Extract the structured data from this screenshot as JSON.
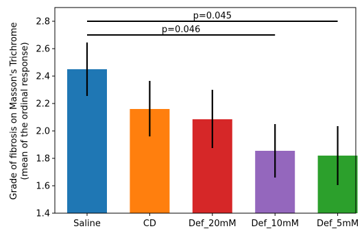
{
  "chart_data": {
    "type": "bar",
    "title": "",
    "xlabel": "",
    "ylabel": [
      "Grade of fibrosis on Masson's Trichrome",
      "(mean of the ordinal response)"
    ],
    "categories": [
      "Saline",
      "CD",
      "Def_20mM",
      "Def_10mM",
      "Def_5mM"
    ],
    "values": [
      2.45,
      2.16,
      2.085,
      1.855,
      1.82
    ],
    "err_low": [
      2.255,
      1.96,
      1.875,
      1.66,
      1.605
    ],
    "err_high": [
      2.645,
      2.365,
      2.3,
      2.05,
      2.035
    ],
    "colors": [
      "#1f77b4",
      "#ff7f0e",
      "#d62728",
      "#9467bd",
      "#2ca02c"
    ],
    "ylim": [
      1.4,
      2.9
    ],
    "yticks": [
      "1.4",
      "1.6",
      "1.8",
      "2.0",
      "2.2",
      "2.4",
      "2.6",
      "2.8"
    ],
    "grid": false,
    "annotations": [
      {
        "from": "Saline",
        "to": "Def_5mM",
        "y": 2.8,
        "text": "p=0.045"
      },
      {
        "from": "Saline",
        "to": "Def_10mM",
        "y": 2.7,
        "text": "p=0.046"
      }
    ]
  }
}
